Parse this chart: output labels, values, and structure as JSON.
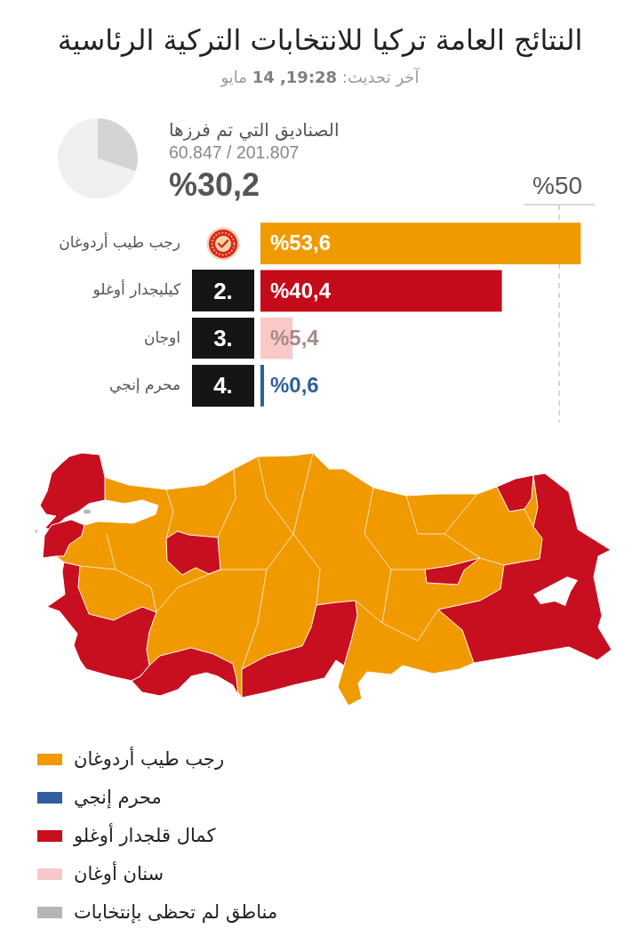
{
  "chart_data": [
    {
      "type": "pie",
      "title": "النتائج العامة تركيا للانتخابات التركية الرئاسية",
      "subtitle": "آخر تحديث: 19:28, 14 مايو",
      "categories": [
        null,
        null
      ],
      "values": [
        30.2,
        69.8
      ],
      "colors": [
        "#d4d4d4",
        "#efefef"
      ],
      "value_labels": [
        "%30,2",
        null
      ],
      "annotations": [
        "الصناديق التي تم فرزها",
        "60.847 / 201.807"
      ]
    },
    {
      "type": "bar",
      "orientation": "horizontal",
      "categories": [
        "رجب طيب أردوغان",
        "كيليجدار أوغلو",
        "اوجان",
        "محرم إنجي"
      ],
      "values": [
        53.6,
        40.4,
        5.4,
        0.6
      ],
      "colors": [
        "#f09a00",
        "#c50a1a",
        "#f9c9c9",
        "#2e5f9a"
      ],
      "value_labels": [
        "%53,6",
        "%40,4",
        "%5,4",
        "%0,6"
      ],
      "xlim": [
        0,
        54
      ],
      "tick_labels": "y",
      "ref_lines": [
        {
          "axis": "x",
          "value": 50,
          "label": "%50",
          "color": "#cccccc",
          "line_style": "dashed"
        }
      ],
      "annotations": [
        "2.",
        "3.",
        "4."
      ]
    },
    {
      "type": "other",
      "series": [
        {
          "name": "رجب طيب أردوغان",
          "color": "#f09a00"
        },
        {
          "name": "محرم إنجي",
          "color": "#2f5f9e"
        },
        {
          "name": "كمال قلجدار أوغلو",
          "color": "#c80f1f"
        },
        {
          "name": "سنان أوغان",
          "color": "#f8c8c8"
        },
        {
          "name": "مناطق لم تحظى بإنتخابات",
          "color": "#b5b5b5"
        }
      ],
      "legend": "bottom"
    }
  ]
}
